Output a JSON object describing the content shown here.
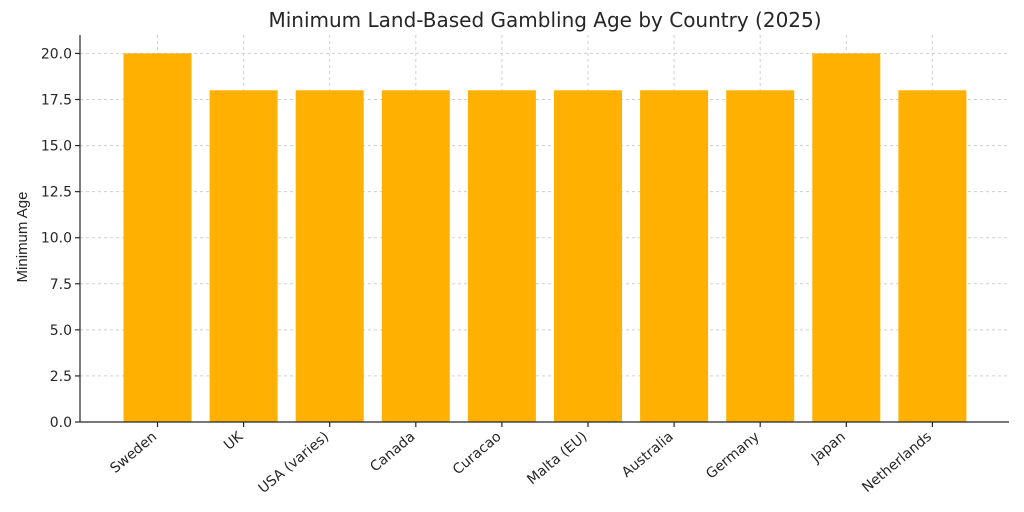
{
  "chart_data": {
    "type": "bar",
    "title": "Minimum Land-Based Gambling Age by Country (2025)",
    "xlabel": "",
    "ylabel": "Minimum Age",
    "categories": [
      "Sweden",
      "UK",
      "USA (varies)",
      "Canada",
      "Curacao",
      "Malta (EU)",
      "Australia",
      "Germany",
      "Japan",
      "Netherlands"
    ],
    "values": [
      20,
      18,
      18,
      18,
      18,
      18,
      18,
      18,
      20,
      18
    ],
    "ylim": [
      0,
      21
    ],
    "yticks": [
      0.0,
      2.5,
      5.0,
      7.5,
      10.0,
      12.5,
      15.0,
      17.5,
      20.0
    ],
    "ytick_labels": [
      "0.0",
      "2.5",
      "5.0",
      "7.5",
      "10.0",
      "12.5",
      "15.0",
      "17.5",
      "20.0"
    ],
    "grid": true,
    "bar_color": "#FFB000"
  }
}
